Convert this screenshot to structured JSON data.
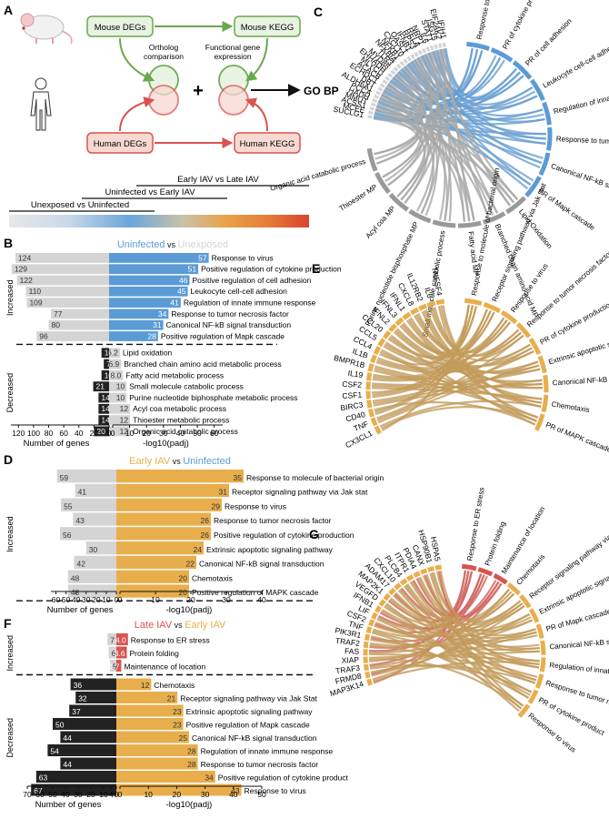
{
  "colors": {
    "gray": "#d4d4d4",
    "blue": "#5b9bd5",
    "orange": "#e8ae4c",
    "red": "#d9534f",
    "black": "#222222",
    "chord_gray": "#999999",
    "chord_blue": "#4f8fc9",
    "chord_tan": "#b88a3e",
    "chord_red": "#c94a45",
    "mouse_green": "#6aa84f",
    "human_red": "#d9534f",
    "fill_green": "#e8f3e2",
    "fill_red": "#f7d9d2"
  },
  "panelA": {
    "label": "A",
    "mouse_degs": "Mouse DEGs",
    "mouse_kegg": "Mouse KEGG",
    "human_degs": "Human DEGs",
    "human_kegg": "Human KEGG",
    "ortholog": [
      "Ortholog",
      "comparison"
    ],
    "functional": [
      "Functional gene",
      "expression"
    ],
    "plus": "+",
    "go_bp": "GO BP",
    "timeline": [
      "Unexposed vs Uninfected",
      "Uninfected vs Early IAV",
      "Early IAV vs Late IAV"
    ]
  },
  "chart_data": [
    {
      "panel": "B",
      "type": "bar",
      "title_left": "Uninfected",
      "title_vs": "vs",
      "title_right": "Unexposed",
      "groups": [
        "Increased",
        "Decreased"
      ],
      "categories": [
        "Response to virus",
        "Positive regulation of cytokine production",
        "Positive regulation of cell adhesion",
        "Leukocyte cell-cell adhesion",
        "Regulation of innate immune response",
        "Response to tumor necrosis factor",
        "Canonical NF-kB signal transduction",
        "Positive regulation of Mapk cascade",
        "Lipid oxidation",
        "Branched chain amino acid metabolic process",
        "Fatty acid metabolic process",
        "Small molecule catabolic process",
        "Purine nucleotide biphosphate metabolic process",
        "Acyl coa metabolic process",
        "Thioester metabolic process",
        "Organic acid catabolic process"
      ],
      "series": [
        {
          "values": [
            124,
            129,
            122,
            110,
            109,
            77,
            80,
            96,
            10,
            7,
            10,
            21,
            14,
            14,
            14,
            20
          ]
        },
        {
          "values": [
            57,
            51,
            46,
            45,
            41,
            34,
            31,
            28,
            6.2,
            6.9,
            8.0,
            10,
            10,
            12,
            12,
            12
          ]
        }
      ],
      "bar_labels": [
        "124",
        "129",
        "122",
        "110",
        "109",
        "77",
        "80",
        "96",
        "10",
        "7",
        "10",
        "21",
        "14",
        "14",
        "14",
        "20",
        "57",
        "51",
        "46",
        "45",
        "41",
        "34",
        "31",
        "28",
        "6.2",
        "6.9",
        "8.0",
        "10",
        "10",
        "12",
        "12",
        "12"
      ],
      "xlabel_left": "Number of genes",
      "xlabel_right": "-log10(padj)",
      "left_ticks": [
        "120",
        "100",
        "80",
        "60",
        "40",
        "20",
        "0"
      ],
      "right_ticks": [
        "0",
        "10",
        "20",
        "30",
        "40",
        "50",
        "60"
      ],
      "xlim_left": [
        0,
        130
      ],
      "xlim_right": [
        0,
        65
      ]
    },
    {
      "panel": "D",
      "type": "bar",
      "title_left": "Early IAV",
      "title_vs": "vs",
      "title_right": "Uninfected",
      "groups": [
        "Increased"
      ],
      "categories": [
        "Response to molecule of bacterial origin",
        "Receptor signaling pathway via Jak stat",
        "Response to virus",
        "Response to tumor necrosis factor",
        "Positive regulation of cytokine production",
        "Extrinsic apoptotic signaling pathway",
        "Canonical NF-kB signal transduction",
        "Chemotaxis",
        "Positive regulation of MAPK cascade"
      ],
      "series": [
        {
          "values": [
            59,
            41,
            55,
            43,
            56,
            30,
            42,
            48,
            48
          ]
        },
        {
          "values": [
            35,
            31,
            29,
            26,
            26,
            24,
            22,
            20,
            20
          ]
        }
      ],
      "bar_labels": [
        "59",
        "41",
        "55",
        "43",
        "56",
        "30",
        "42",
        "48",
        "48",
        "35",
        "31",
        "29",
        "26",
        "26",
        "24",
        "22",
        "20",
        "20"
      ],
      "xlabel_left": "Number of genes",
      "xlabel_right": "-log10(padj)",
      "left_ticks": [
        "60",
        "50",
        "40",
        "30",
        "20",
        "10",
        "0"
      ],
      "right_ticks": [
        "0",
        "10",
        "20",
        "30",
        "40"
      ],
      "xlim_left": [
        0,
        65
      ],
      "xlim_right": [
        0,
        40
      ]
    },
    {
      "panel": "F",
      "type": "bar",
      "title_left": "Late IAV",
      "title_vs": "vs",
      "title_right": "Early IAV",
      "groups": [
        "Increased",
        "Decreased"
      ],
      "categories": [
        "Response to ER stress",
        "Protein folding",
        "Maintenance of location",
        "Chemotaxis",
        "Receptor signaling pathway via Jak Stat",
        "Extrinsic apoptotic signaling pathway",
        "Positive regulation of Mapk cascade",
        "Canonical NF-kB signal transduction",
        "Regulation of innate immune response",
        "Response to tumor necrosis factor",
        "Positive regulation of cytokine product",
        "Response to virus"
      ],
      "series": [
        {
          "values": [
            7,
            6,
            5,
            36,
            32,
            37,
            50,
            44,
            54,
            44,
            63,
            67
          ]
        },
        {
          "values": [
            4.0,
            3.6,
            1.7,
            12,
            21,
            23,
            23,
            25,
            28,
            28,
            34,
            43
          ]
        }
      ],
      "bar_labels": [
        "7",
        "6",
        "5",
        "36",
        "32",
        "37",
        "50",
        "44",
        "54",
        "44",
        "63",
        "67",
        "4.0",
        "3.6",
        "1.7",
        "12",
        "21",
        "23",
        "23",
        "25",
        "28",
        "28",
        "34",
        "43"
      ],
      "xlabel_left": "Number of genes",
      "xlabel_right": "-log10(padj)",
      "left_ticks": [
        "70",
        "60",
        "50",
        "40",
        "30",
        "20",
        "10",
        "4",
        "0"
      ],
      "right_ticks": [
        "0",
        "10",
        "20",
        "30",
        "40",
        "50"
      ],
      "xlim_left": [
        0,
        70
      ],
      "xlim_right": [
        0,
        50
      ]
    }
  ],
  "chords": [
    {
      "panel": "C",
      "genes": [
        "SUCLG1",
        "MCEE",
        "ACSS1",
        "MMUT",
        "HADH",
        "PCCA",
        "ALDH6A1",
        "DBT",
        "ECHDC1",
        "ACACB",
        "MLYCD",
        "EHHADH",
        "MYD88",
        "TLR3",
        "NFKBIA",
        "NFKB1",
        "CXCL10",
        "OASL1",
        "IFNB1",
        "RPS3",
        "RELA",
        "NRP1",
        "IL6",
        "STAT1",
        "ISG15",
        "EIF2AK2",
        "IFIH1"
      ],
      "terms": [
        "Response to virus",
        "PR of cytokine production",
        "PR of cell adhesion",
        "Leukocyte cell-cell adhesion",
        "Regulation of innate immune response",
        "Response to tumor necrosis factor",
        "Canonical NF-kB signal transduction",
        "PR of Mapk cascade",
        "Lipid Oxidation",
        "Branched chain amino acid MP",
        "Fatty acid MP",
        "Small molecule catabolic process",
        "Purine nucleotide bisphosphate MP",
        "Acyl coa MP",
        "Thioester MP",
        "Organic acid catabolic process"
      ]
    },
    {
      "panel": "E",
      "genes": [
        "CX3CL1",
        "TNF",
        "CD40",
        "BIRC3",
        "CSF1",
        "CSF2",
        "IL19",
        "BMPR1B",
        "IL1B",
        "CCL4",
        "CCL5",
        "CCL20",
        "IFNL2",
        "IFNL3",
        "IFNL1",
        "CXCL8",
        "IL12RB2",
        "IL6",
        "TNFSF4"
      ],
      "terms": [
        "Response to molecule of bacterial origin",
        "Receptor signaling pathway via Jak stat",
        "Response to virus",
        "Response to tumor necrosis factor",
        "PR of cytokine production",
        "Extrinsic apoptotic signaling pathway",
        "Canonical NF-kB signal transduction",
        "Chemotaxis",
        "PR of MAPK cascade"
      ]
    },
    {
      "panel": "G",
      "genes": [
        "MAP3K14",
        "FRMD8",
        "TRAF3",
        "XIAP",
        "FAS",
        "TRAF2",
        "PIK3R1",
        "TNF",
        "CSF2",
        "LIF",
        "IFNB1",
        "VEGFD",
        "MAP2K1",
        "ADAM17",
        "CXCL10",
        "PLCB4",
        "ITPR1",
        "PDIA4",
        "CANX",
        "HSP90B1",
        "HSPA5"
      ],
      "terms": [
        "Response to ER stress",
        "Protein folding",
        "Maintenance of location",
        "Chemotaxis",
        "Receptor signaling pathway via Jak Stat",
        "Extrinsic apoptotic signaling pathway",
        "PR of Mapk cascade",
        "Canonical NF-kB signal transduction",
        "Regulation of innate immune response",
        "Response to tumor necrosis factor",
        "PR of cytokine product",
        "Response to virus"
      ]
    }
  ]
}
